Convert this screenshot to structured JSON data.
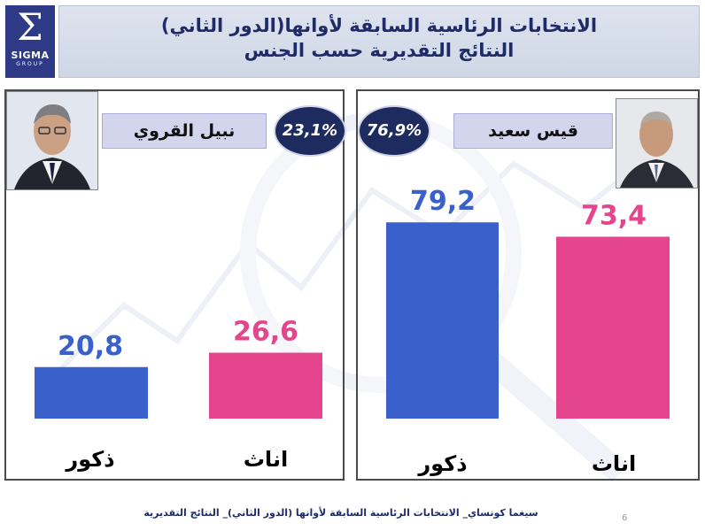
{
  "logo": {
    "glyph": "Σ",
    "name": "SIGMA",
    "sub": "GROUP"
  },
  "header": {
    "title": "الانتخابات الرئاسية السابقة لأوانها(الدور الثاني)",
    "subtitle": "النتائج التقديرية  حسب الجنس"
  },
  "candidates": [
    {
      "name": "نبيل القروي",
      "percent": "23,1%"
    },
    {
      "name": "قيس سعيد",
      "percent": "76,9%"
    }
  ],
  "colors": {
    "male": "#3a60cc",
    "female": "#e5458d",
    "navy": "#1d2b5e"
  },
  "chart_data": [
    {
      "type": "bar",
      "series_owner": "نبيل القروي",
      "categories": [
        "ذكور",
        "اناث"
      ],
      "values": [
        20.8,
        26.6
      ],
      "value_labels": [
        "20,8",
        "26,6"
      ]
    },
    {
      "type": "bar",
      "series_owner": "قيس سعيد",
      "categories": [
        "ذكور",
        "اناث"
      ],
      "values": [
        79.2,
        73.4
      ],
      "value_labels": [
        "79,2",
        "73,4"
      ]
    }
  ],
  "footer": {
    "text": "سيغما كونساي_ الانتخابات الرئاسية السابقة لأوانها (الدور الثاني)_ النتائج التقديرية",
    "page": "6"
  }
}
